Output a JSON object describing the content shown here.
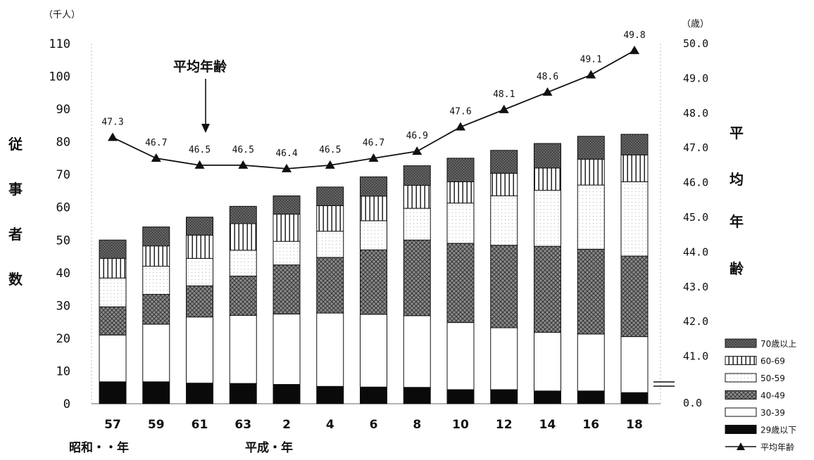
{
  "chart_data": {
    "type": "bar",
    "stacked": true,
    "categories": [
      "57",
      "59",
      "61",
      "63",
      "2",
      "4",
      "6",
      "8",
      "10",
      "12",
      "14",
      "16",
      "18"
    ],
    "era_labels": [
      "昭和・・年",
      "平成・年"
    ],
    "left_axis": {
      "label_chars": [
        "従",
        "事",
        "者",
        "数"
      ],
      "unit": "（千人）",
      "ylim": [
        0,
        110
      ],
      "ticks": [
        "0",
        "10",
        "20",
        "30",
        "40",
        "50",
        "60",
        "70",
        "80",
        "90",
        "100",
        "110"
      ]
    },
    "right_axis": {
      "label_chars": [
        "平",
        "均",
        "年",
        "齢"
      ],
      "unit": "（歳）",
      "ylim": [
        40,
        50
      ],
      "ticks": [
        "0.0",
        "41.0",
        "42.0",
        "43.0",
        "44.0",
        "45.0",
        "46.0",
        "47.0",
        "48.0",
        "49.0",
        "50.0"
      ],
      "tick_values": [
        null,
        41,
        42,
        43,
        44,
        45,
        46,
        47,
        48,
        49,
        50
      ],
      "axis_break": true
    },
    "series": [
      {
        "name": "29歳以下",
        "pattern": "black",
        "values": [
          6.7,
          6.7,
          6.3,
          6.2,
          5.9,
          5.3,
          5.1,
          5.0,
          4.3,
          4.3,
          3.9,
          3.9,
          3.4
        ]
      },
      {
        "name": "30-39",
        "pattern": "white",
        "values": [
          14.3,
          17.6,
          20.2,
          20.8,
          21.5,
          22.4,
          22.2,
          21.9,
          20.5,
          18.9,
          17.9,
          17.4,
          17.1
        ]
      },
      {
        "name": "40-49",
        "pattern": "crosshatch",
        "values": [
          8.6,
          9.1,
          9.5,
          12.0,
          15.0,
          17.0,
          19.7,
          23.1,
          24.2,
          25.2,
          26.3,
          25.9,
          24.6
        ]
      },
      {
        "name": "50-59",
        "pattern": "dots",
        "values": [
          8.8,
          8.6,
          8.4,
          7.9,
          7.2,
          8.0,
          8.9,
          9.7,
          12.3,
          15.1,
          17.1,
          19.6,
          22.7
        ]
      },
      {
        "name": "60-69",
        "pattern": "vlines",
        "values": [
          6.0,
          6.2,
          7.1,
          8.1,
          8.3,
          7.8,
          7.5,
          7.0,
          6.5,
          6.9,
          6.8,
          7.9,
          8.2
        ]
      },
      {
        "name": "70歳以上",
        "pattern": "darkdots",
        "values": [
          5.6,
          5.8,
          5.5,
          5.3,
          5.6,
          5.7,
          5.9,
          6.0,
          7.2,
          7.0,
          7.5,
          7.0,
          6.3
        ]
      }
    ],
    "line_series": {
      "name": "平均年齢",
      "axis": "right",
      "values": [
        47.3,
        46.7,
        46.5,
        46.5,
        46.4,
        46.5,
        46.7,
        46.9,
        47.6,
        48.1,
        48.6,
        49.1,
        49.8
      ],
      "labels": [
        "47.3",
        "46.7",
        "46.5",
        "46.5",
        "46.4",
        "46.5",
        "46.7",
        "46.9",
        "47.6",
        "48.1",
        "48.6",
        "49.1",
        "49.8"
      ],
      "marker": "triangle"
    },
    "annotation": "平均年齢",
    "legend_position": "bottom-right",
    "grid": false
  }
}
